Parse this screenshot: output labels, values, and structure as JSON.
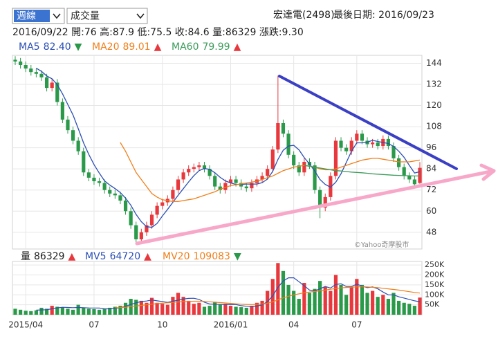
{
  "controls": {
    "period": "週線",
    "indicator": "成交量"
  },
  "header": {
    "stock": "宏達電(2498)",
    "last_date": "最後日期: 2016/09/23",
    "info": "2016/09/22 開:76 高:87.9 低:75.5 收:84.6 量:86329 漲跌:9.30"
  },
  "watermark": "©Yahoo奇摩股市",
  "chart_data": [
    {
      "type": "candlestick",
      "up_color": "#e8383d",
      "down_color": "#2a9a4a",
      "grid": true,
      "ylim": [
        38.5,
        148.5
      ],
      "yticks": [
        48,
        60,
        72,
        84,
        96,
        108,
        120,
        132,
        144
      ],
      "open": [
        146,
        145,
        143,
        141,
        139,
        138,
        136,
        130,
        133,
        122,
        112,
        106,
        100,
        94,
        82,
        79,
        77,
        76,
        72,
        70,
        69,
        66,
        60,
        52,
        44,
        48,
        52,
        58,
        63,
        65,
        67,
        72,
        78,
        82,
        84,
        85,
        86,
        84,
        80,
        74,
        72,
        76,
        78,
        76,
        74,
        73,
        76,
        78,
        80,
        84,
        95,
        110,
        104,
        92,
        86,
        82,
        88,
        86,
        72,
        62,
        68,
        80,
        100,
        96,
        94,
        100,
        104,
        100,
        98,
        99,
        97,
        101,
        97,
        90,
        85,
        80,
        78,
        76
      ],
      "high": [
        148,
        147,
        145,
        143,
        141,
        140,
        138,
        135,
        135,
        124,
        114,
        108,
        102,
        96,
        84,
        81,
        79,
        78,
        74,
        72,
        71,
        68,
        62,
        54,
        50,
        54,
        60,
        65,
        67,
        69,
        74,
        80,
        84,
        86,
        87,
        88,
        88,
        86,
        82,
        76,
        78,
        80,
        80,
        78,
        76,
        78,
        80,
        82,
        86,
        97,
        137,
        112,
        106,
        94,
        88,
        90,
        90,
        88,
        74,
        70,
        82,
        102,
        102,
        98,
        102,
        106,
        106,
        102,
        101,
        101,
        103,
        103,
        99,
        92,
        87,
        82,
        80,
        87.9
      ],
      "low": [
        143,
        141,
        139,
        137,
        136,
        134,
        128,
        128,
        120,
        110,
        104,
        98,
        92,
        80,
        77,
        75,
        74,
        70,
        68,
        67,
        64,
        58,
        50,
        42,
        42,
        46,
        50,
        56,
        61,
        63,
        65,
        70,
        76,
        80,
        82,
        83,
        82,
        78,
        72,
        70,
        70,
        74,
        74,
        72,
        71,
        71,
        74,
        76,
        78,
        82,
        93,
        102,
        90,
        84,
        80,
        80,
        84,
        70,
        56,
        60,
        66,
        78,
        94,
        92,
        92,
        98,
        98,
        96,
        96,
        95,
        95,
        95,
        88,
        83,
        78,
        76,
        73.3,
        75.5
      ],
      "close": [
        145,
        143,
        141,
        139,
        138,
        136,
        130,
        133,
        122,
        112,
        106,
        100,
        94,
        82,
        79,
        77,
        76,
        72,
        70,
        69,
        66,
        60,
        52,
        44,
        48,
        52,
        58,
        63,
        65,
        67,
        72,
        78,
        82,
        84,
        85,
        86,
        84,
        80,
        74,
        72,
        76,
        78,
        76,
        74,
        73,
        76,
        78,
        80,
        84,
        95,
        110,
        104,
        92,
        86,
        82,
        88,
        86,
        72,
        62,
        68,
        80,
        100,
        96,
        94,
        100,
        104,
        100,
        98,
        99,
        97,
        101,
        97,
        90,
        85,
        80,
        78,
        75.3,
        84.6
      ],
      "series": [
        {
          "name": "MA5",
          "color": "#2b4fb5",
          "value_label": "82.40",
          "trend": "▼",
          "trend_color": "#2a9a4a",
          "values": [
            null,
            null,
            null,
            null,
            141.2,
            139.4,
            136.8,
            135.2,
            131.8,
            126.6,
            120.6,
            114.6,
            106.8,
            98.8,
            92.2,
            86.4,
            81.6,
            77.2,
            74.8,
            72.8,
            70.6,
            67.4,
            63.4,
            58.2,
            54,
            51.2,
            50.8,
            53,
            57.2,
            61,
            65,
            69,
            72.8,
            76.6,
            80.2,
            83,
            84.2,
            83.8,
            81.8,
            79.2,
            77.2,
            76,
            75.2,
            75.2,
            75.4,
            75.4,
            75.4,
            76.2,
            78.2,
            82.6,
            89.4,
            94.6,
            97,
            97.4,
            94.8,
            90.4,
            86.8,
            82.8,
            78,
            75.2,
            73.6,
            76.4,
            81.2,
            87.6,
            94,
            98.8,
            98.8,
            99.2,
            100.2,
            99.6,
            99,
            98.4,
            96.8,
            94,
            90.6,
            86,
            81.66,
            82.4
          ]
        },
        {
          "name": "MA20",
          "color": "#f07f1a",
          "value_label": "89.01",
          "trend": "▲",
          "trend_color": "#e8383d",
          "values": [
            null,
            null,
            null,
            null,
            null,
            null,
            null,
            null,
            null,
            null,
            null,
            null,
            null,
            null,
            null,
            null,
            null,
            null,
            null,
            null,
            99,
            94,
            88,
            82,
            78,
            74,
            70,
            68,
            66.5,
            66,
            65.5,
            65.5,
            66,
            66.5,
            67,
            68,
            69,
            70,
            71,
            72.5,
            73.5,
            74.5,
            75,
            75.5,
            76,
            76.5,
            77,
            78,
            79,
            80,
            81.5,
            83,
            84,
            85,
            85.5,
            86,
            85.5,
            85,
            84,
            83.5,
            83.5,
            84,
            85,
            86,
            87,
            88,
            89,
            89.5,
            90,
            90,
            89.5,
            89,
            88.5,
            88,
            88,
            88,
            88.5,
            89.01
          ]
        },
        {
          "name": "MA60",
          "color": "#3b9b5a",
          "value_label": "79.99",
          "trend": "▲",
          "trend_color": "#e8383d",
          "values": [
            null,
            null,
            null,
            null,
            null,
            null,
            null,
            null,
            null,
            null,
            null,
            null,
            null,
            null,
            null,
            null,
            null,
            null,
            null,
            null,
            null,
            null,
            null,
            null,
            null,
            null,
            null,
            null,
            null,
            null,
            null,
            null,
            null,
            null,
            null,
            null,
            null,
            null,
            null,
            null,
            null,
            null,
            null,
            null,
            null,
            null,
            null,
            null,
            null,
            null,
            null,
            null,
            null,
            null,
            null,
            86,
            85.5,
            85,
            84.5,
            84,
            83.5,
            83,
            82.8,
            82.5,
            82.2,
            82,
            81.8,
            81.5,
            81.2,
            81,
            80.8,
            80.6,
            80.4,
            80.3,
            80.2,
            80.1,
            80,
            79.99
          ]
        }
      ]
    },
    {
      "type": "bar",
      "name": "量",
      "value_label": "86329",
      "trend": "▲",
      "trend_color": "#e8383d",
      "grid": true,
      "categories": [
        null,
        null,
        "2015/04",
        null,
        null,
        null,
        null,
        null,
        null,
        null,
        null,
        null,
        null,
        null,
        null,
        "07",
        null,
        null,
        null,
        null,
        null,
        null,
        null,
        null,
        null,
        null,
        null,
        null,
        "10",
        null,
        null,
        null,
        null,
        null,
        null,
        null,
        null,
        null,
        null,
        null,
        null,
        "2016/01",
        null,
        null,
        null,
        null,
        null,
        null,
        null,
        null,
        null,
        null,
        null,
        "04",
        null,
        null,
        null,
        null,
        null,
        null,
        null,
        null,
        null,
        null,
        null,
        "07",
        null,
        null,
        null,
        null,
        null,
        null,
        null,
        null,
        null,
        null,
        null,
        null
      ],
      "ylim": [
        0,
        268000
      ],
      "yticks": [
        {
          "value": 50000,
          "label": "50K"
        },
        {
          "value": 100000,
          "label": "100K"
        },
        {
          "value": 150000,
          "label": "150K"
        },
        {
          "value": 200000,
          "label": "200K"
        },
        {
          "value": 250000,
          "label": "250K"
        }
      ],
      "values": [
        30000,
        25000,
        20000,
        18000,
        22000,
        35000,
        30000,
        45000,
        40000,
        38000,
        30000,
        25000,
        50000,
        35000,
        30000,
        28000,
        25000,
        30000,
        35000,
        40000,
        45000,
        60000,
        80000,
        75000,
        70000,
        60000,
        85000,
        60000,
        55000,
        50000,
        90000,
        110000,
        90000,
        70000,
        55000,
        60000,
        40000,
        45000,
        65000,
        50000,
        55000,
        45000,
        40000,
        38000,
        35000,
        45000,
        60000,
        70000,
        120000,
        180000,
        260000,
        220000,
        150000,
        120000,
        80000,
        160000,
        110000,
        130000,
        170000,
        140000,
        120000,
        200000,
        150000,
        100000,
        140000,
        180000,
        150000,
        110000,
        120000,
        90000,
        100000,
        80000,
        110000,
        70000,
        60000,
        55000,
        45000,
        86329
      ],
      "series": [
        {
          "name": "MV5",
          "color": "#2b4fb5",
          "value_label": "64720",
          "trend": "▲",
          "trend_color": "#e8383d",
          "values": [
            null,
            null,
            null,
            null,
            23000,
            24000,
            25000,
            30000,
            34400,
            37600,
            36600,
            35600,
            36600,
            35600,
            34000,
            33600,
            33600,
            29600,
            29600,
            31600,
            35000,
            42000,
            52000,
            60000,
            66000,
            69000,
            74000,
            70000,
            66000,
            62000,
            68000,
            73000,
            79000,
            82000,
            83000,
            77000,
            63000,
            54000,
            53000,
            52000,
            51000,
            52000,
            51000,
            45600,
            42600,
            40600,
            43600,
            49600,
            66000,
            95000,
            138000,
            170000,
            186000,
            186000,
            166000,
            146000,
            124000,
            120000,
            130000,
            142000,
            134000,
            152000,
            156000,
            142000,
            142000,
            154000,
            144000,
            136000,
            140000,
            130000,
            114000,
            100000,
            100000,
            90000,
            84000,
            77000,
            70000,
            64720
          ]
        },
        {
          "name": "MV20",
          "color": "#f07f1a",
          "value_label": "109083",
          "trend": "▼",
          "trend_color": "#2a9a4a",
          "values": [
            null,
            null,
            null,
            null,
            null,
            null,
            null,
            null,
            null,
            null,
            null,
            null,
            null,
            null,
            null,
            null,
            null,
            null,
            null,
            35000,
            36000,
            38000,
            41000,
            44000,
            47000,
            50000,
            53000,
            56000,
            58000,
            60000,
            62000,
            64000,
            66000,
            67000,
            68000,
            68000,
            67000,
            65000,
            63000,
            61000,
            59000,
            57000,
            55000,
            53000,
            52000,
            51000,
            52000,
            54000,
            58000,
            65000,
            75000,
            85000,
            93000,
            100000,
            105000,
            110000,
            114000,
            117000,
            120000,
            124000,
            128000,
            132000,
            135000,
            137000,
            139000,
            140000,
            141000,
            140000,
            138000,
            136000,
            133000,
            130000,
            127000,
            124000,
            120000,
            116000,
            112000,
            109083
          ]
        }
      ]
    }
  ]
}
